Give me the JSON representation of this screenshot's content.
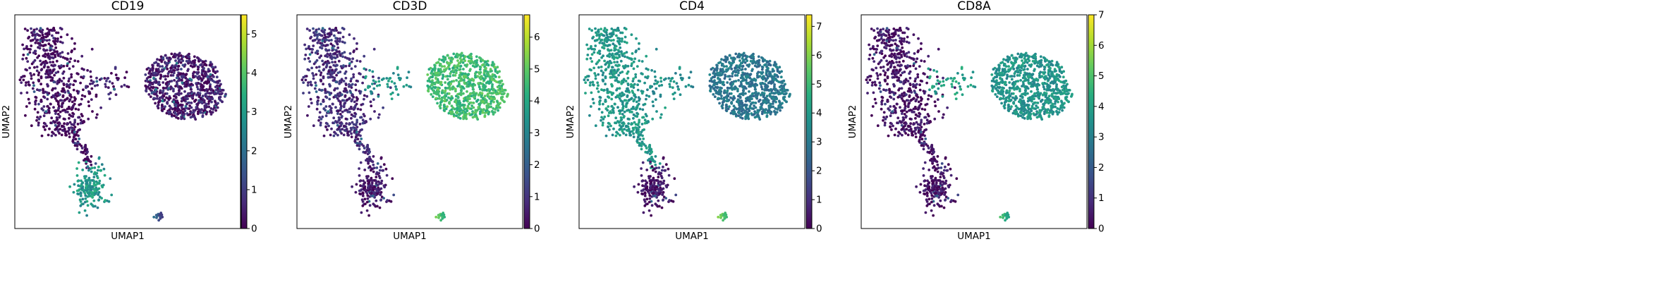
{
  "chart_data": [
    {
      "type": "scatter",
      "title": "CD19",
      "xlabel": "UMAP1",
      "ylabel": "UMAP2",
      "colormap": "viridis",
      "colorbar": {
        "min": 0,
        "max": 5.5,
        "ticks": [
          "0",
          "1",
          "2",
          "3",
          "4",
          "5"
        ]
      },
      "cluster_levels": {
        "left_large": 0.1,
        "bridge": 0.4,
        "right_large": 0.4,
        "lower": 2.9,
        "bottom_small": 1.5
      }
    },
    {
      "type": "scatter",
      "title": "CD3D",
      "xlabel": "UMAP1",
      "ylabel": "UMAP2",
      "colormap": "viridis",
      "colorbar": {
        "min": 0,
        "max": 6.7,
        "ticks": [
          "0",
          "1",
          "2",
          "3",
          "4",
          "5",
          "6"
        ]
      },
      "cluster_levels": {
        "left_large": 0.8,
        "bridge": 3.5,
        "right_large": 4.6,
        "lower": 0.4,
        "bottom_small": 4.8
      }
    },
    {
      "type": "scatter",
      "title": "CD4",
      "xlabel": "UMAP1",
      "ylabel": "UMAP2",
      "colormap": "viridis",
      "colorbar": {
        "min": 0,
        "max": 7.4,
        "ticks": [
          "0",
          "1",
          "2",
          "3",
          "4",
          "5",
          "6",
          "7"
        ]
      },
      "cluster_levels": {
        "left_large": 3.9,
        "bridge": 3.6,
        "right_large": 2.9,
        "lower": 0.4,
        "bottom_small": 5.5
      }
    },
    {
      "type": "scatter",
      "title": "CD8A",
      "xlabel": "UMAP1",
      "ylabel": "UMAP2",
      "colormap": "viridis",
      "colorbar": {
        "min": 0,
        "max": 7.0,
        "ticks": [
          "0",
          "1",
          "2",
          "3",
          "4",
          "5",
          "6",
          "7"
        ]
      },
      "cluster_levels": {
        "left_large": 0.3,
        "bridge": 4.0,
        "right_large": 3.6,
        "lower": 0.3,
        "bottom_small": 4.5
      }
    }
  ]
}
